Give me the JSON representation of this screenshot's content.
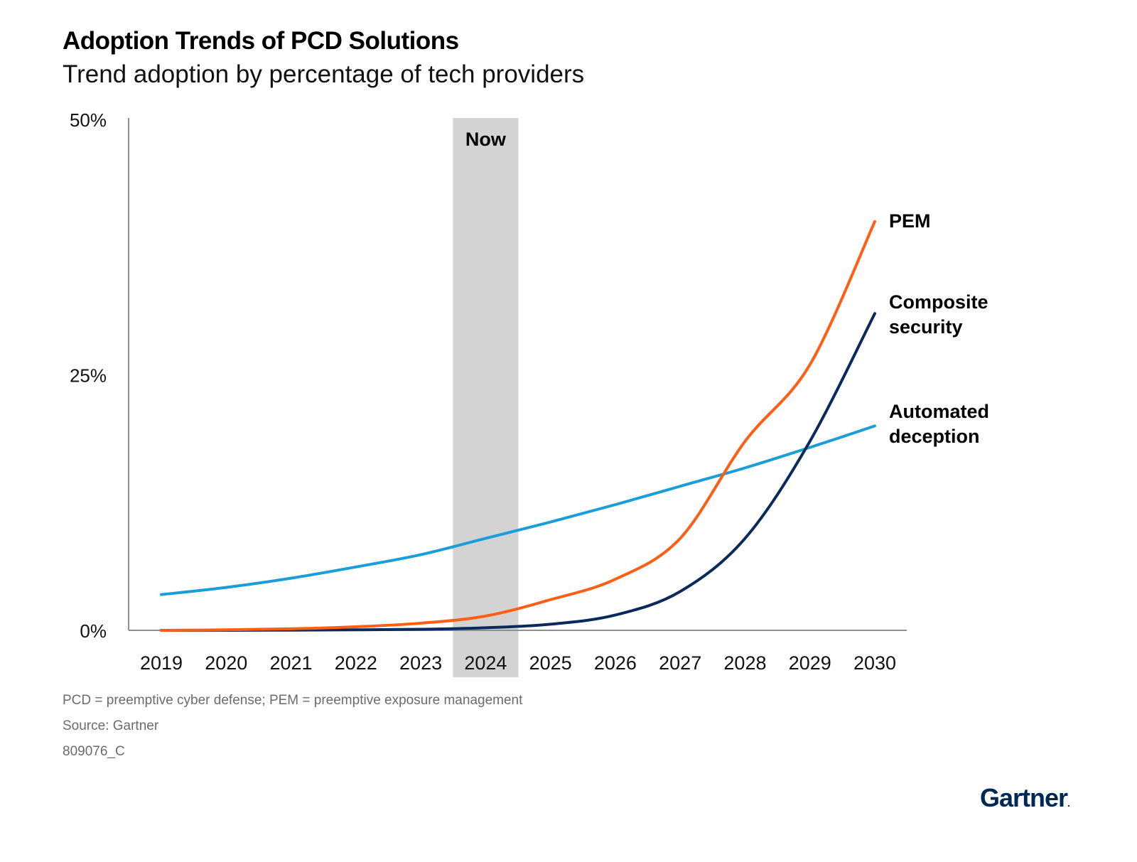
{
  "header": {
    "title": "Adoption Trends of PCD Solutions",
    "subtitle": "Trend adoption by percentage of tech providers"
  },
  "chart_data": {
    "type": "line",
    "title": "Adoption Trends of PCD Solutions",
    "subtitle": "Trend adoption by percentage of tech providers",
    "xlabel": "",
    "ylabel": "",
    "x": [
      "2019",
      "2020",
      "2021",
      "2022",
      "2023",
      "2024",
      "2025",
      "2026",
      "2027",
      "2028",
      "2029",
      "2030"
    ],
    "ylim": [
      0,
      50
    ],
    "y_ticks": [
      "0%",
      "25%",
      "50%"
    ],
    "y_tick_values": [
      0,
      25,
      50
    ],
    "grid": false,
    "highlight": {
      "label": "Now",
      "x": "2024",
      "color": "#d3d3d3"
    },
    "legend": "inline-right",
    "series": [
      {
        "name": "PEM",
        "label_lines": [
          "PEM"
        ],
        "color": "#ff5e14",
        "values": [
          0,
          0.05,
          0.15,
          0.35,
          0.7,
          1.4,
          3.0,
          5.0,
          9.0,
          18.5,
          26.0,
          40.0
        ]
      },
      {
        "name": "Composite security",
        "label_lines": [
          "Composite",
          "security"
        ],
        "color": "#0a2a5c",
        "values": [
          0,
          0,
          0.02,
          0.05,
          0.1,
          0.25,
          0.6,
          1.5,
          3.8,
          9.0,
          18.5,
          31.0
        ]
      },
      {
        "name": "Automated deception",
        "label_lines": [
          "Automated",
          "deception"
        ],
        "color": "#1a9ed9",
        "values": [
          3.5,
          4.2,
          5.1,
          6.2,
          7.4,
          9.0,
          10.6,
          12.3,
          14.1,
          15.9,
          17.9,
          20.0
        ]
      }
    ]
  },
  "notes": {
    "abbreviations": "PCD = preemptive cyber defense; PEM = preemptive exposure management",
    "source": "Source: Gartner",
    "id": "809076_C"
  },
  "logo": {
    "text": "Gartner",
    "mark": "."
  }
}
